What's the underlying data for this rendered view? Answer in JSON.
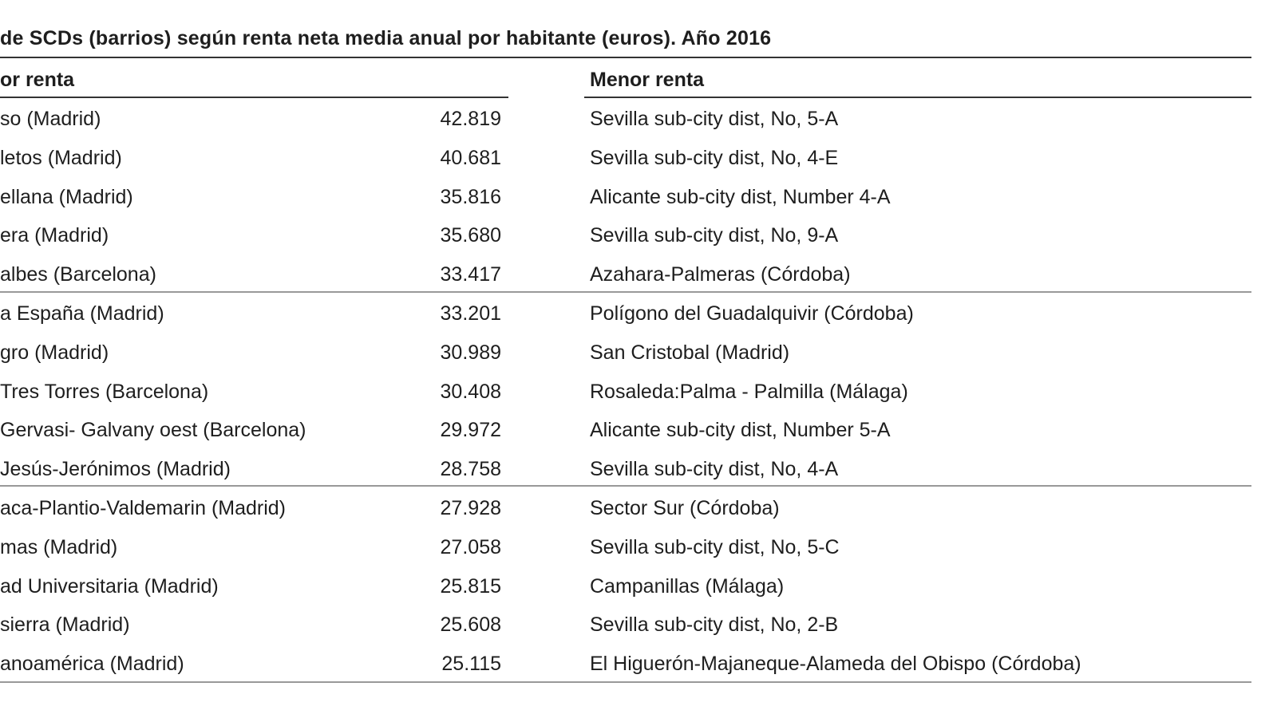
{
  "title": "de SCDs (barrios) según renta neta media anual por habitante (euros). Año 2016",
  "headers": {
    "mayor": "or renta",
    "menor": "Menor renta"
  },
  "rows": [
    {
      "mayor": "so (Madrid)",
      "renta": "42.819",
      "menor": "Sevilla sub-city dist, No, 5-A"
    },
    {
      "mayor": "letos (Madrid)",
      "renta": "40.681",
      "menor": "Sevilla sub-city dist, No, 4-E"
    },
    {
      "mayor": "ellana (Madrid)",
      "renta": "35.816",
      "menor": "Alicante sub-city dist, Number 4-A"
    },
    {
      "mayor": "era (Madrid)",
      "renta": "35.680",
      "menor": "Sevilla sub-city dist, No, 9-A"
    },
    {
      "mayor": "albes (Barcelona)",
      "renta": "33.417",
      "menor": "Azahara-Palmeras (Córdoba)"
    },
    {
      "mayor": "a España (Madrid)",
      "renta": "33.201",
      "menor": "Polígono del Guadalquivir (Córdoba)"
    },
    {
      "mayor": "gro (Madrid)",
      "renta": "30.989",
      "menor": "San Cristobal (Madrid)"
    },
    {
      "mayor": "Tres Torres (Barcelona)",
      "renta": "30.408",
      "menor": "Rosaleda:Palma - Palmilla (Málaga)"
    },
    {
      "mayor": " Gervasi- Galvany oest (Barcelona)",
      "renta": "29.972",
      "menor": "Alicante sub-city dist, Number 5-A"
    },
    {
      "mayor": " Jesús-Jerónimos (Madrid)",
      "renta": "28.758",
      "menor": "Sevilla sub-city dist, No, 4-A"
    },
    {
      "mayor": "aca-Plantio-Valdemarin (Madrid)",
      "renta": "27.928",
      "menor": "Sector Sur (Córdoba)"
    },
    {
      "mayor": "mas (Madrid)",
      "renta": "27.058",
      "menor": "Sevilla sub-city dist, No, 5-C"
    },
    {
      "mayor": "ad Universitaria (Madrid)",
      "renta": "25.815",
      "menor": "Campanillas (Málaga)"
    },
    {
      "mayor": "sierra (Madrid)",
      "renta": "25.608",
      "menor": "Sevilla sub-city dist, No, 2-B"
    },
    {
      "mayor": "anoamérica (Madrid)",
      "renta": "25.115",
      "menor": "El Higuerón-Majaneque-Alameda del Obispo (Córdoba)"
    }
  ]
}
